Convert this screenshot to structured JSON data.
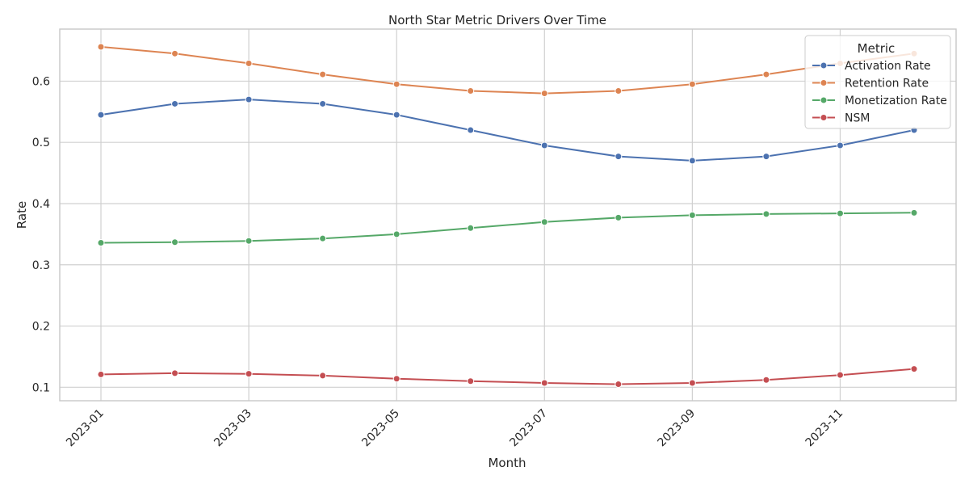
{
  "chart_data": {
    "type": "line",
    "title": "North Star Metric Drivers Over Time",
    "xlabel": "Month",
    "ylabel": "Rate",
    "x": [
      "2023-01",
      "2023-02",
      "2023-03",
      "2023-04",
      "2023-05",
      "2023-06",
      "2023-07",
      "2023-08",
      "2023-09",
      "2023-10",
      "2023-11",
      "2023-12"
    ],
    "x_tick_labels": [
      "2023-01",
      "2023-03",
      "2023-05",
      "2023-07",
      "2023-09",
      "2023-11"
    ],
    "y_ticks": [
      0.1,
      0.2,
      0.3,
      0.4,
      0.5,
      0.6
    ],
    "y_tick_labels": [
      "0.1",
      "0.2",
      "0.3",
      "0.4",
      "0.5",
      "0.6"
    ],
    "ylim": [
      0.078,
      0.685
    ],
    "grid": true,
    "legend": {
      "title": "Metric",
      "placement": "top-right"
    },
    "series": [
      {
        "name": "Activation Rate",
        "color": "#4c72b0",
        "values": [
          0.545,
          0.563,
          0.57,
          0.563,
          0.545,
          0.52,
          0.495,
          0.477,
          0.47,
          0.477,
          0.495,
          0.52
        ]
      },
      {
        "name": "Retention Rate",
        "color": "#dd8452",
        "values": [
          0.656,
          0.645,
          0.629,
          0.611,
          0.595,
          0.584,
          0.58,
          0.584,
          0.595,
          0.611,
          0.629,
          0.645
        ]
      },
      {
        "name": "Monetization Rate",
        "color": "#55a868",
        "values": [
          0.336,
          0.337,
          0.339,
          0.343,
          0.35,
          0.36,
          0.37,
          0.377,
          0.381,
          0.383,
          0.384,
          0.385
        ]
      },
      {
        "name": "NSM",
        "color": "#c44e52",
        "values": [
          0.121,
          0.123,
          0.122,
          0.119,
          0.114,
          0.11,
          0.107,
          0.105,
          0.107,
          0.112,
          0.12,
          0.13
        ]
      }
    ]
  }
}
